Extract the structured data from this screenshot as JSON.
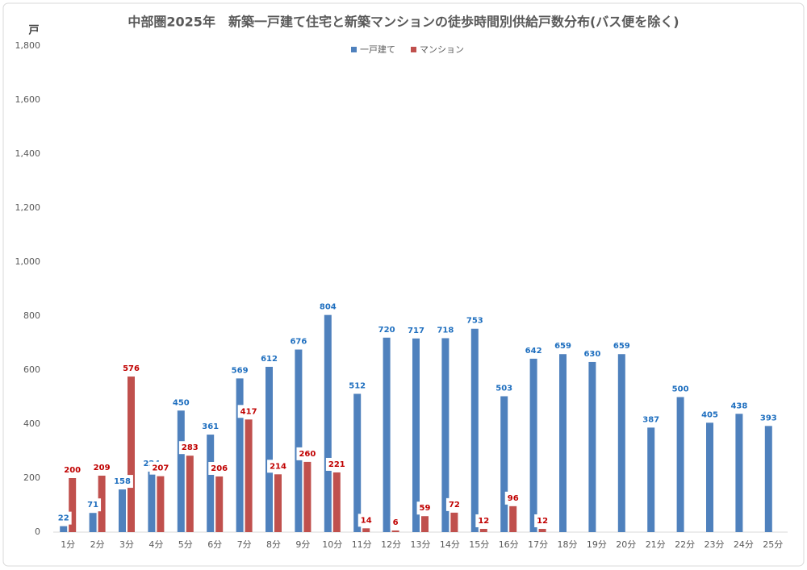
{
  "chart_data": {
    "type": "bar",
    "title": "中部圏2025年　新築一戸建て住宅と新築マンションの徒歩時間別供給戸数分布(バス便を除く)",
    "y_unit": "戸",
    "categories": [
      "1分",
      "2分",
      "3分",
      "4分",
      "5分",
      "6分",
      "7分",
      "8分",
      "9分",
      "10分",
      "11分",
      "12分",
      "13分",
      "14分",
      "15分",
      "16分",
      "17分",
      "18分",
      "19分",
      "20分",
      "21分",
      "22分",
      "23分",
      "24分",
      "25分"
    ],
    "series": [
      {
        "name": "一戸建て",
        "color": "#4f81bd",
        "label_color": "#1f6fbf",
        "values": [
          22,
          71,
          158,
          224,
          450,
          361,
          569,
          612,
          676,
          804,
          512,
          720,
          717,
          718,
          753,
          503,
          642,
          659,
          630,
          659,
          387,
          500,
          405,
          438,
          393
        ]
      },
      {
        "name": "マンション",
        "color": "#c0504d",
        "label_color": "#c00000",
        "values": [
          200,
          209,
          576,
          207,
          283,
          206,
          417,
          214,
          260,
          221,
          14,
          6,
          59,
          72,
          12,
          96,
          12,
          null,
          null,
          null,
          null,
          null,
          null,
          null,
          null
        ]
      }
    ],
    "ylim": [
      0,
      1800
    ],
    "yticks": [
      0,
      200,
      400,
      600,
      800,
      {
        "value": 1000,
        "label": "1,000"
      },
      {
        "value": 1200,
        "label": "1,200"
      },
      {
        "value": 1400,
        "label": "1,400"
      },
      {
        "value": 1600,
        "label": "1,600"
      },
      {
        "value": 1800,
        "label": "1,800"
      }
    ],
    "legend": "top",
    "grid": false
  }
}
